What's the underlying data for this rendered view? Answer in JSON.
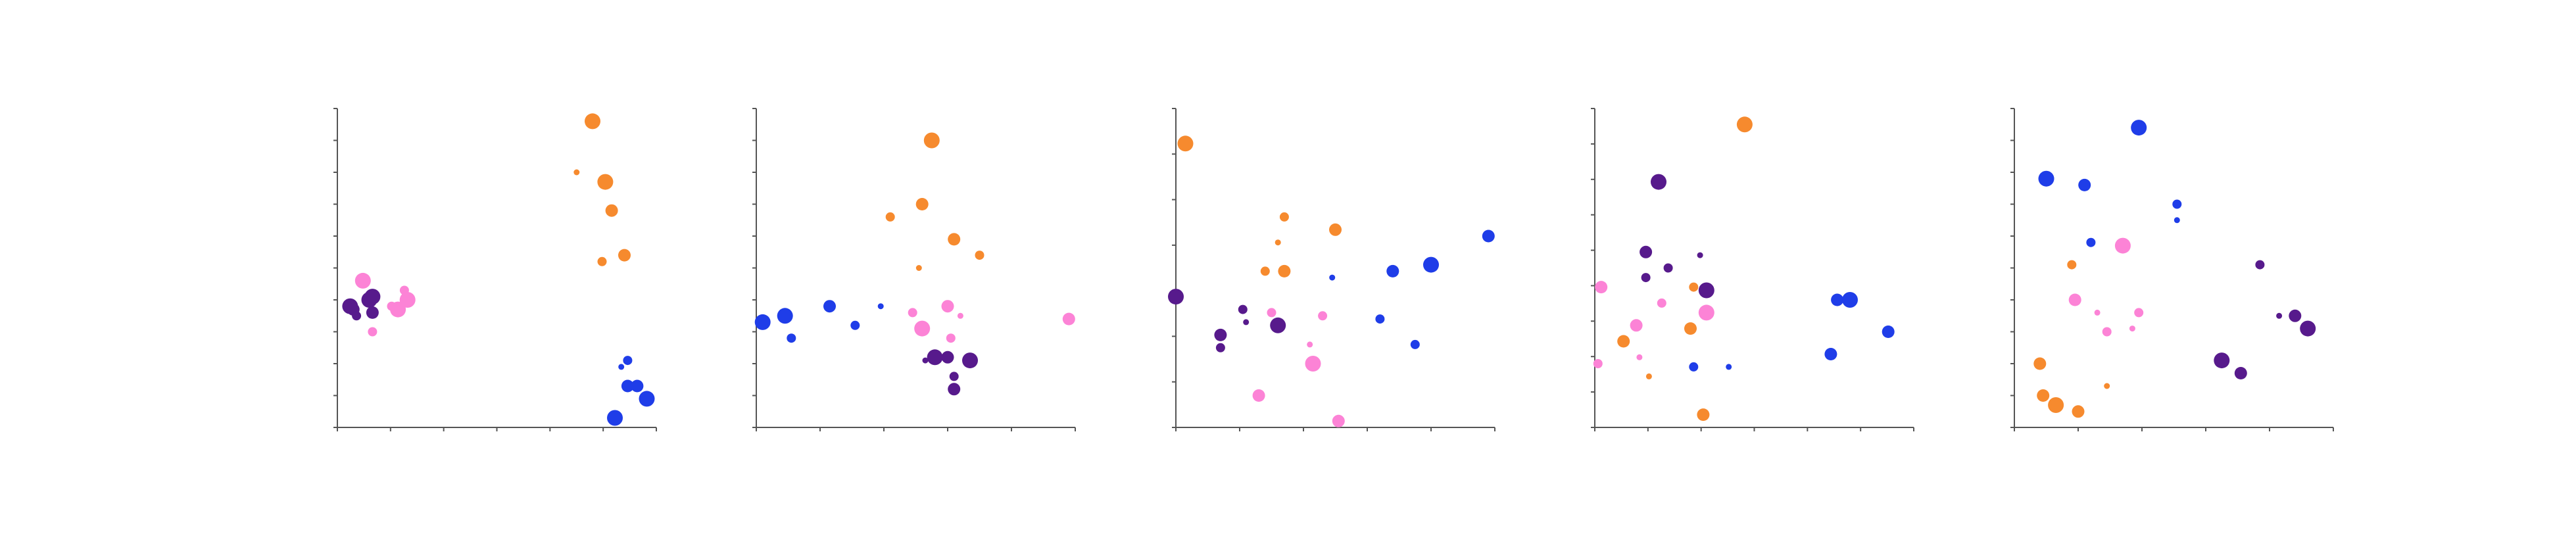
{
  "figure": {
    "background": "#ffffff"
  },
  "colors": {
    "orange": "#f68a2e",
    "blue": "#1f3de8",
    "pink": "#fc83d6",
    "purple": "#571a8c"
  },
  "chart_data": [
    {
      "type": "scatter",
      "xlim": [
        0,
        100
      ],
      "ylim": [
        0,
        100
      ],
      "xticks": 6,
      "yticks": 10,
      "points": [
        {
          "x": 80,
          "y": 96,
          "s": 5,
          "c": "orange"
        },
        {
          "x": 75,
          "y": 80,
          "s": 2,
          "c": "orange"
        },
        {
          "x": 84,
          "y": 77,
          "s": 5,
          "c": "orange"
        },
        {
          "x": 86,
          "y": 68,
          "s": 4,
          "c": "orange"
        },
        {
          "x": 90,
          "y": 54,
          "s": 4,
          "c": "orange"
        },
        {
          "x": 83,
          "y": 52,
          "s": 3,
          "c": "orange"
        },
        {
          "x": 91,
          "y": 21,
          "s": 3,
          "c": "blue"
        },
        {
          "x": 89,
          "y": 19,
          "s": 2,
          "c": "blue"
        },
        {
          "x": 91,
          "y": 13,
          "s": 4,
          "c": "blue"
        },
        {
          "x": 94,
          "y": 13,
          "s": 4,
          "c": "blue"
        },
        {
          "x": 97,
          "y": 9,
          "s": 5,
          "c": "blue"
        },
        {
          "x": 87,
          "y": 3,
          "s": 5,
          "c": "blue"
        },
        {
          "x": 8,
          "y": 46,
          "s": 5,
          "c": "pink"
        },
        {
          "x": 21,
          "y": 43,
          "s": 3,
          "c": "pink"
        },
        {
          "x": 22,
          "y": 40,
          "s": 5,
          "c": "pink"
        },
        {
          "x": 19,
          "y": 37,
          "s": 5,
          "c": "pink"
        },
        {
          "x": 17,
          "y": 38,
          "s": 3,
          "c": "pink"
        },
        {
          "x": 11,
          "y": 30,
          "s": 3,
          "c": "pink"
        },
        {
          "x": 10,
          "y": 40,
          "s": 5,
          "c": "purple"
        },
        {
          "x": 11,
          "y": 41,
          "s": 5,
          "c": "purple"
        },
        {
          "x": 4,
          "y": 38,
          "s": 5,
          "c": "purple"
        },
        {
          "x": 5,
          "y": 37,
          "s": 4,
          "c": "purple"
        },
        {
          "x": 6,
          "y": 35,
          "s": 3,
          "c": "purple"
        },
        {
          "x": 11,
          "y": 36,
          "s": 4,
          "c": "purple"
        }
      ]
    },
    {
      "type": "scatter",
      "xlim": [
        0,
        100
      ],
      "ylim": [
        0,
        100
      ],
      "xticks": 5,
      "yticks": 10,
      "points": [
        {
          "x": 55,
          "y": 90,
          "s": 5,
          "c": "orange"
        },
        {
          "x": 52,
          "y": 70,
          "s": 4,
          "c": "orange"
        },
        {
          "x": 42,
          "y": 66,
          "s": 3,
          "c": "orange"
        },
        {
          "x": 62,
          "y": 59,
          "s": 4,
          "c": "orange"
        },
        {
          "x": 70,
          "y": 54,
          "s": 3,
          "c": "orange"
        },
        {
          "x": 51,
          "y": 50,
          "s": 2,
          "c": "orange"
        },
        {
          "x": 2,
          "y": 33,
          "s": 5,
          "c": "blue"
        },
        {
          "x": 9,
          "y": 35,
          "s": 5,
          "c": "blue"
        },
        {
          "x": 23,
          "y": 38,
          "s": 4,
          "c": "blue"
        },
        {
          "x": 39,
          "y": 38,
          "s": 2,
          "c": "blue"
        },
        {
          "x": 31,
          "y": 32,
          "s": 3,
          "c": "blue"
        },
        {
          "x": 11,
          "y": 28,
          "s": 3,
          "c": "blue"
        },
        {
          "x": 60,
          "y": 38,
          "s": 4,
          "c": "pink"
        },
        {
          "x": 64,
          "y": 35,
          "s": 2,
          "c": "pink"
        },
        {
          "x": 49,
          "y": 36,
          "s": 3,
          "c": "pink"
        },
        {
          "x": 52,
          "y": 31,
          "s": 5,
          "c": "pink"
        },
        {
          "x": 61,
          "y": 28,
          "s": 3,
          "c": "pink"
        },
        {
          "x": 98,
          "y": 34,
          "s": 4,
          "c": "pink"
        },
        {
          "x": 56,
          "y": 22,
          "s": 5,
          "c": "purple"
        },
        {
          "x": 53,
          "y": 21,
          "s": 2,
          "c": "purple"
        },
        {
          "x": 60,
          "y": 22,
          "s": 4,
          "c": "purple"
        },
        {
          "x": 67,
          "y": 21,
          "s": 5,
          "c": "purple"
        },
        {
          "x": 62,
          "y": 16,
          "s": 3,
          "c": "purple"
        },
        {
          "x": 62,
          "y": 12,
          "s": 4,
          "c": "purple"
        }
      ]
    },
    {
      "type": "scatter",
      "xlim": [
        0,
        100
      ],
      "ylim": [
        0,
        100
      ],
      "xticks": 5,
      "yticks": 7,
      "points": [
        {
          "x": 3,
          "y": 89,
          "s": 5,
          "c": "orange"
        },
        {
          "x": 34,
          "y": 66,
          "s": 3,
          "c": "orange"
        },
        {
          "x": 50,
          "y": 62,
          "s": 4,
          "c": "orange"
        },
        {
          "x": 32,
          "y": 58,
          "s": 2,
          "c": "orange"
        },
        {
          "x": 28,
          "y": 49,
          "s": 3,
          "c": "orange"
        },
        {
          "x": 34,
          "y": 49,
          "s": 4,
          "c": "orange"
        },
        {
          "x": 98,
          "y": 60,
          "s": 4,
          "c": "blue"
        },
        {
          "x": 80,
          "y": 51,
          "s": 5,
          "c": "blue"
        },
        {
          "x": 68,
          "y": 49,
          "s": 4,
          "c": "blue"
        },
        {
          "x": 49,
          "y": 47,
          "s": 2,
          "c": "blue"
        },
        {
          "x": 64,
          "y": 34,
          "s": 3,
          "c": "blue"
        },
        {
          "x": 75,
          "y": 26,
          "s": 3,
          "c": "blue"
        },
        {
          "x": 30,
          "y": 36,
          "s": 3,
          "c": "pink"
        },
        {
          "x": 46,
          "y": 35,
          "s": 3,
          "c": "pink"
        },
        {
          "x": 42,
          "y": 26,
          "s": 2,
          "c": "pink"
        },
        {
          "x": 43,
          "y": 20,
          "s": 5,
          "c": "pink"
        },
        {
          "x": 26,
          "y": 10,
          "s": 4,
          "c": "pink"
        },
        {
          "x": 51,
          "y": 2,
          "s": 4,
          "c": "pink"
        },
        {
          "x": 0,
          "y": 41,
          "s": 5,
          "c": "purple"
        },
        {
          "x": 21,
          "y": 37,
          "s": 3,
          "c": "purple"
        },
        {
          "x": 22,
          "y": 33,
          "s": 2,
          "c": "purple"
        },
        {
          "x": 32,
          "y": 32,
          "s": 5,
          "c": "purple"
        },
        {
          "x": 14,
          "y": 29,
          "s": 4,
          "c": "purple"
        },
        {
          "x": 14,
          "y": 25,
          "s": 3,
          "c": "purple"
        }
      ]
    },
    {
      "type": "scatter",
      "xlim": [
        0,
        100
      ],
      "ylim": [
        0,
        100
      ],
      "xticks": 6,
      "yticks": 9,
      "points": [
        {
          "x": 47,
          "y": 95,
          "s": 5,
          "c": "orange"
        },
        {
          "x": 31,
          "y": 44,
          "s": 3,
          "c": "orange"
        },
        {
          "x": 30,
          "y": 31,
          "s": 4,
          "c": "orange"
        },
        {
          "x": 9,
          "y": 27,
          "s": 4,
          "c": "orange"
        },
        {
          "x": 17,
          "y": 16,
          "s": 2,
          "c": "orange"
        },
        {
          "x": 34,
          "y": 4,
          "s": 4,
          "c": "orange"
        },
        {
          "x": 76,
          "y": 40,
          "s": 4,
          "c": "blue"
        },
        {
          "x": 80,
          "y": 40,
          "s": 5,
          "c": "blue"
        },
        {
          "x": 92,
          "y": 30,
          "s": 4,
          "c": "blue"
        },
        {
          "x": 74,
          "y": 23,
          "s": 4,
          "c": "blue"
        },
        {
          "x": 31,
          "y": 19,
          "s": 3,
          "c": "blue"
        },
        {
          "x": 42,
          "y": 19,
          "s": 2,
          "c": "blue"
        },
        {
          "x": 2,
          "y": 44,
          "s": 4,
          "c": "pink"
        },
        {
          "x": 21,
          "y": 39,
          "s": 3,
          "c": "pink"
        },
        {
          "x": 35,
          "y": 36,
          "s": 5,
          "c": "pink"
        },
        {
          "x": 13,
          "y": 32,
          "s": 4,
          "c": "pink"
        },
        {
          "x": 14,
          "y": 22,
          "s": 2,
          "c": "pink"
        },
        {
          "x": 1,
          "y": 20,
          "s": 3,
          "c": "pink"
        },
        {
          "x": 20,
          "y": 77,
          "s": 5,
          "c": "purple"
        },
        {
          "x": 16,
          "y": 55,
          "s": 4,
          "c": "purple"
        },
        {
          "x": 33,
          "y": 54,
          "s": 2,
          "c": "purple"
        },
        {
          "x": 23,
          "y": 50,
          "s": 3,
          "c": "purple"
        },
        {
          "x": 16,
          "y": 47,
          "s": 3,
          "c": "purple"
        },
        {
          "x": 35,
          "y": 43,
          "s": 5,
          "c": "purple"
        }
      ]
    },
    {
      "type": "scatter",
      "xlim": [
        0,
        100
      ],
      "ylim": [
        0,
        100
      ],
      "xticks": 5,
      "yticks": 10,
      "points": [
        {
          "x": 18,
          "y": 51,
          "s": 3,
          "c": "orange"
        },
        {
          "x": 8,
          "y": 20,
          "s": 4,
          "c": "orange"
        },
        {
          "x": 29,
          "y": 13,
          "s": 2,
          "c": "orange"
        },
        {
          "x": 9,
          "y": 10,
          "s": 4,
          "c": "orange"
        },
        {
          "x": 13,
          "y": 7,
          "s": 5,
          "c": "orange"
        },
        {
          "x": 20,
          "y": 5,
          "s": 4,
          "c": "orange"
        },
        {
          "x": 39,
          "y": 94,
          "s": 5,
          "c": "blue"
        },
        {
          "x": 10,
          "y": 78,
          "s": 5,
          "c": "blue"
        },
        {
          "x": 22,
          "y": 76,
          "s": 4,
          "c": "blue"
        },
        {
          "x": 51,
          "y": 70,
          "s": 3,
          "c": "blue"
        },
        {
          "x": 51,
          "y": 65,
          "s": 2,
          "c": "blue"
        },
        {
          "x": 24,
          "y": 58,
          "s": 3,
          "c": "blue"
        },
        {
          "x": 34,
          "y": 57,
          "s": 5,
          "c": "pink"
        },
        {
          "x": 19,
          "y": 40,
          "s": 4,
          "c": "pink"
        },
        {
          "x": 26,
          "y": 36,
          "s": 2,
          "c": "pink"
        },
        {
          "x": 39,
          "y": 36,
          "s": 3,
          "c": "pink"
        },
        {
          "x": 29,
          "y": 30,
          "s": 3,
          "c": "pink"
        },
        {
          "x": 37,
          "y": 31,
          "s": 2,
          "c": "pink"
        },
        {
          "x": 77,
          "y": 51,
          "s": 3,
          "c": "purple"
        },
        {
          "x": 83,
          "y": 35,
          "s": 2,
          "c": "purple"
        },
        {
          "x": 88,
          "y": 35,
          "s": 4,
          "c": "purple"
        },
        {
          "x": 92,
          "y": 31,
          "s": 5,
          "c": "purple"
        },
        {
          "x": 65,
          "y": 21,
          "s": 5,
          "c": "purple"
        },
        {
          "x": 71,
          "y": 17,
          "s": 4,
          "c": "purple"
        }
      ]
    }
  ]
}
